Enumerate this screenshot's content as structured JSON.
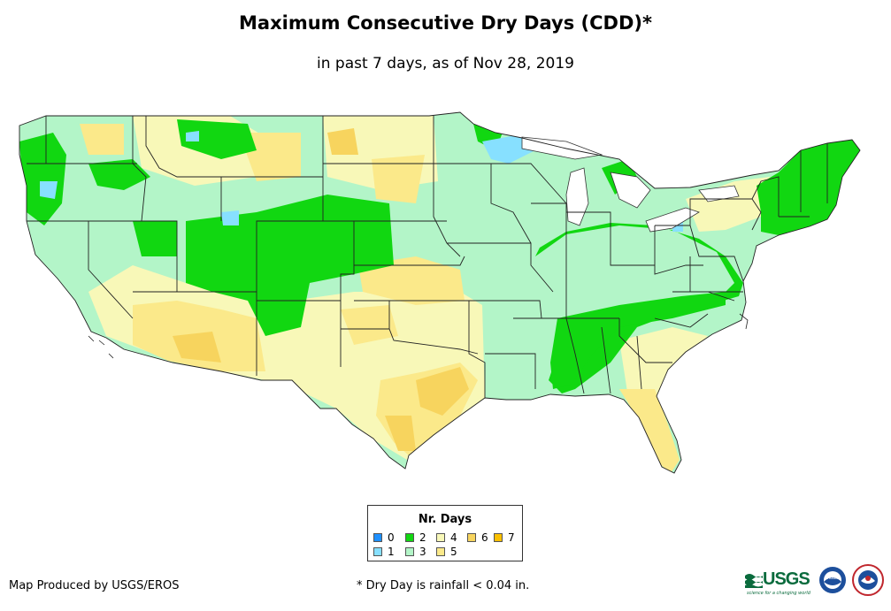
{
  "header": {
    "title": "Maximum Consecutive Dry Days (CDD)*",
    "subtitle": "in past 7 days, as of Nov 28, 2019"
  },
  "legend": {
    "title": "Nr. Days",
    "items": [
      {
        "label": "0",
        "color": "#1e90ff"
      },
      {
        "label": "1",
        "color": "#87e0ff"
      },
      {
        "label": "2",
        "color": "#11d711"
      },
      {
        "label": "3",
        "color": "#b3f5c8"
      },
      {
        "label": "4",
        "color": "#f8f8b8"
      },
      {
        "label": "5",
        "color": "#fbe98a"
      },
      {
        "label": "6",
        "color": "#f7d45e"
      },
      {
        "label": "7",
        "color": "#fbc000"
      }
    ]
  },
  "footer": {
    "credit": "Map Produced by USGS/EROS",
    "footnote": "* Dry Day is rainfall < 0.04 in.",
    "logos": [
      "USGS",
      "NOAA",
      "NWS"
    ],
    "usgs_tagline": "science for a changing world"
  }
}
